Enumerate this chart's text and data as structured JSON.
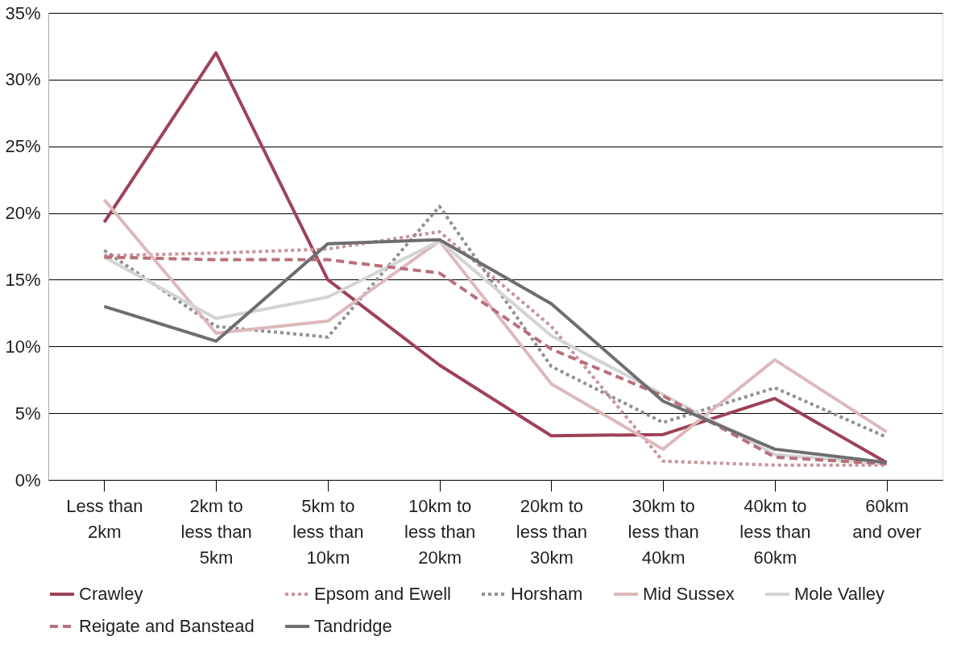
{
  "chart_data": {
    "type": "line",
    "categories": [
      "Less than\n2km",
      "2km to\nless than\n5km",
      "5km to\nless than\n10km",
      "10km to\nless than\n20km",
      "20km to\nless than\n30km",
      "30km to\nless than\n40km",
      "40km to\nless than\n60km",
      "60km\nand over"
    ],
    "series": [
      {
        "name": "Crawley",
        "color": "#9e4258",
        "line_style": "solid",
        "values": [
          19.3,
          32.0,
          15.0,
          8.6,
          3.3,
          3.4,
          6.1,
          1.3
        ]
      },
      {
        "name": "Epsom and Ewell",
        "color": "#c9939a",
        "line_style": "dotted",
        "values": [
          16.8,
          17.0,
          17.3,
          18.6,
          11.5,
          1.4,
          1.1,
          1.1
        ]
      },
      {
        "name": "Horsham",
        "color": "#909194",
        "line_style": "dotted",
        "values": [
          17.2,
          11.5,
          10.7,
          20.5,
          8.5,
          4.3,
          6.9,
          3.2
        ]
      },
      {
        "name": "Mid Sussex",
        "color": "#ddb9bc",
        "line_style": "solid",
        "values": [
          21.0,
          11.0,
          11.9,
          17.9,
          7.2,
          2.3,
          9.0,
          3.6
        ]
      },
      {
        "name": "Mole Valley",
        "color": "#d4d4d4",
        "line_style": "solid",
        "values": [
          16.7,
          12.1,
          13.7,
          17.9,
          10.8,
          6.4,
          1.9,
          1.2
        ]
      },
      {
        "name": "Reigate and Banstead",
        "color": "#b8707b",
        "line_style": "dashed",
        "values": [
          16.7,
          16.5,
          16.5,
          15.5,
          9.8,
          6.3,
          1.7,
          1.2
        ]
      },
      {
        "name": "Tandridge",
        "color": "#6e6e70",
        "line_style": "solid",
        "values": [
          13.0,
          10.4,
          17.7,
          18.0,
          13.2,
          5.9,
          2.3,
          1.3
        ]
      }
    ],
    "ylim": [
      0,
      35
    ],
    "yticks": [
      {
        "value": 0,
        "label": "0%"
      },
      {
        "value": 5,
        "label": "5%"
      },
      {
        "value": 10,
        "label": "10%"
      },
      {
        "value": 15,
        "label": "15%"
      },
      {
        "value": 20,
        "label": "20%"
      },
      {
        "value": 25,
        "label": "25%"
      },
      {
        "value": 30,
        "label": "30%"
      },
      {
        "value": 35,
        "label": "35%"
      }
    ],
    "grid": "y",
    "legend": "bottom",
    "marker": "none"
  }
}
